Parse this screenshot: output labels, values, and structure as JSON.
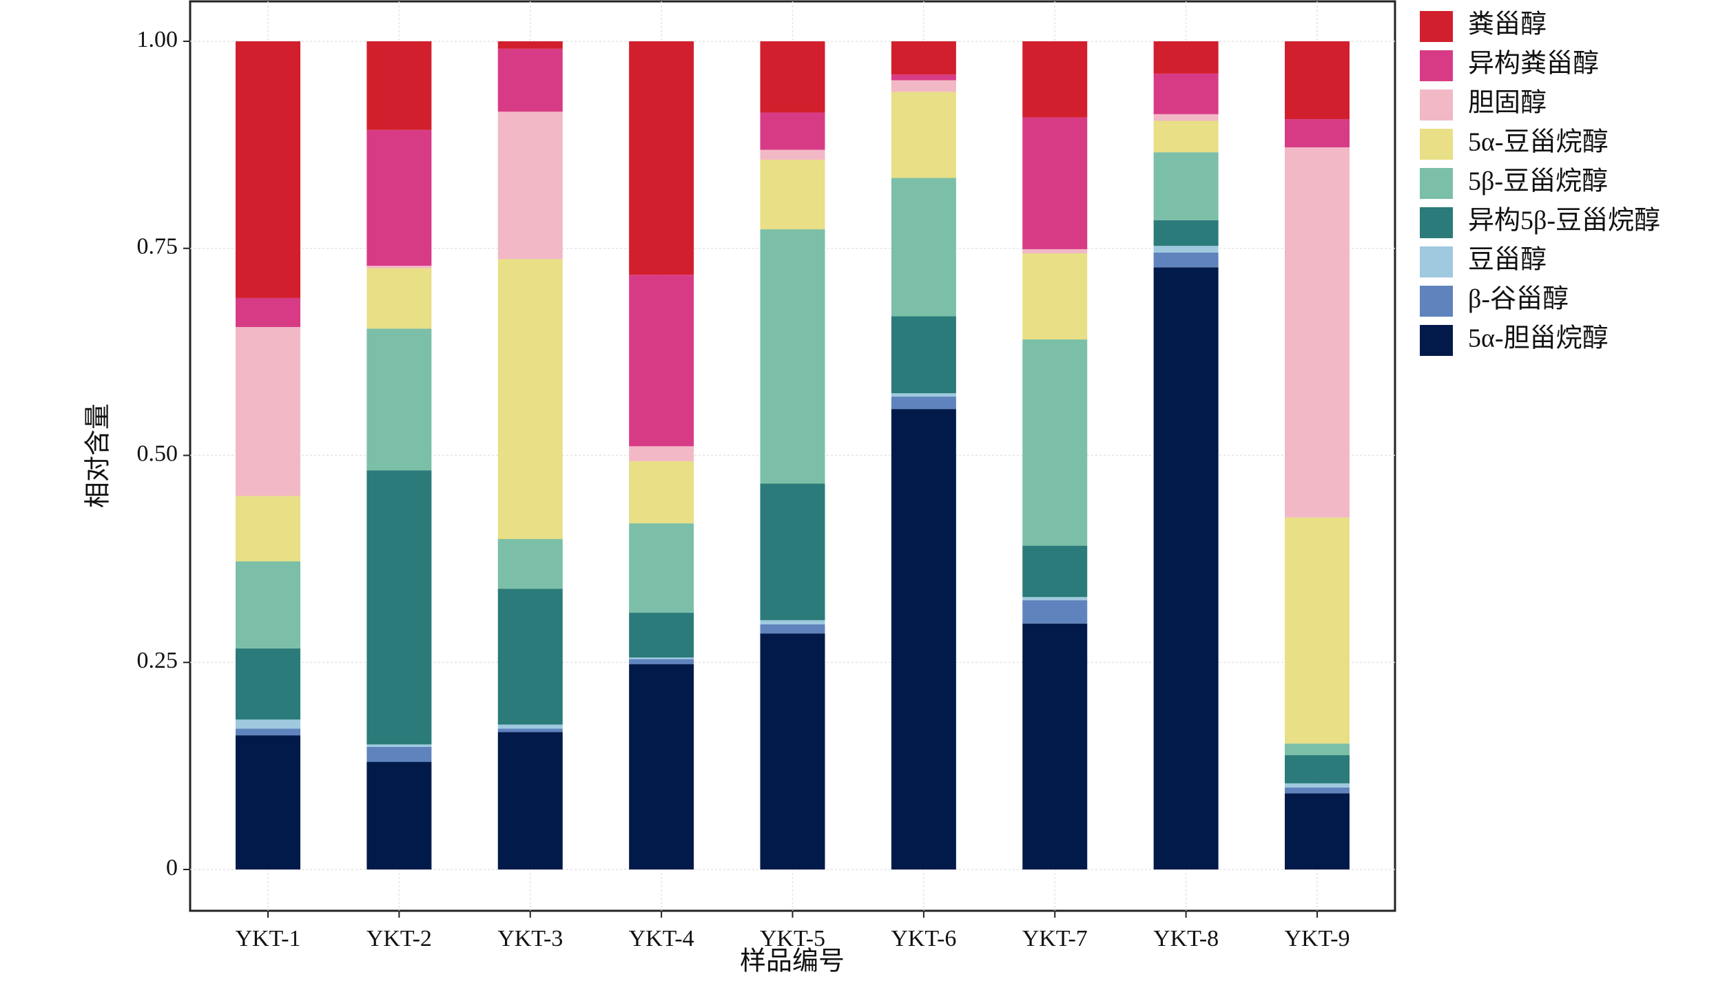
{
  "chart_data": {
    "type": "stacked_bar",
    "x_label": "样品编号",
    "y_label": "相对含量",
    "categories": [
      "YKT-1",
      "YKT-2",
      "YKT-3",
      "YKT-4",
      "YKT-5",
      "YKT-6",
      "YKT-7",
      "YKT-8",
      "YKT-9"
    ],
    "series": [
      {
        "name": "5α-胆甾烷醇",
        "color": "#011a4a",
        "values": [
          0.162,
          0.13,
          0.166,
          0.248,
          0.285,
          0.556,
          0.297,
          0.727,
          0.092
        ]
      },
      {
        "name": "β-谷甾醇",
        "color": "#5f83bd",
        "values": [
          0.008,
          0.018,
          0.004,
          0.006,
          0.011,
          0.015,
          0.028,
          0.018,
          0.007
        ]
      },
      {
        "name": "豆甾醇",
        "color": "#9ec9df",
        "values": [
          0.011,
          0.003,
          0.005,
          0.002,
          0.005,
          0.004,
          0.004,
          0.008,
          0.005
        ]
      },
      {
        "name": "异构5β-豆甾烷醇",
        "color": "#2a7b79",
        "values": [
          0.086,
          0.331,
          0.164,
          0.054,
          0.165,
          0.093,
          0.062,
          0.031,
          0.034
        ]
      },
      {
        "name": "5β-豆甾烷醇",
        "color": "#7bbfa8",
        "values": [
          0.105,
          0.171,
          0.06,
          0.108,
          0.307,
          0.167,
          0.249,
          0.082,
          0.014
        ]
      },
      {
        "name": "5α-豆甾烷醇",
        "color": "#e8df86",
        "values": [
          0.079,
          0.073,
          0.338,
          0.075,
          0.084,
          0.104,
          0.104,
          0.038,
          0.273
        ]
      },
      {
        "name": "胆固醇",
        "color": "#f2b8c6",
        "values": [
          0.204,
          0.003,
          0.178,
          0.018,
          0.012,
          0.014,
          0.005,
          0.008,
          0.447
        ]
      },
      {
        "name": "异构粪甾醇",
        "color": "#d83b86",
        "values": [
          0.035,
          0.164,
          0.076,
          0.207,
          0.045,
          0.007,
          0.159,
          0.049,
          0.034
        ]
      },
      {
        "name": "粪甾醇",
        "color": "#d21f2d",
        "values": [
          0.31,
          0.107,
          0.009,
          0.282,
          0.086,
          0.04,
          0.092,
          0.039,
          0.094
        ]
      }
    ],
    "ylim": [
      0,
      1.0
    ],
    "yticks": [
      {
        "value": 0,
        "label": "0"
      },
      {
        "value": 0.25,
        "label": "0.25"
      },
      {
        "value": 0.5,
        "label": "0.50"
      },
      {
        "value": 0.75,
        "label": "0.75"
      },
      {
        "value": 1.0,
        "label": "1.00"
      }
    ],
    "grid": true,
    "legend": "right"
  }
}
